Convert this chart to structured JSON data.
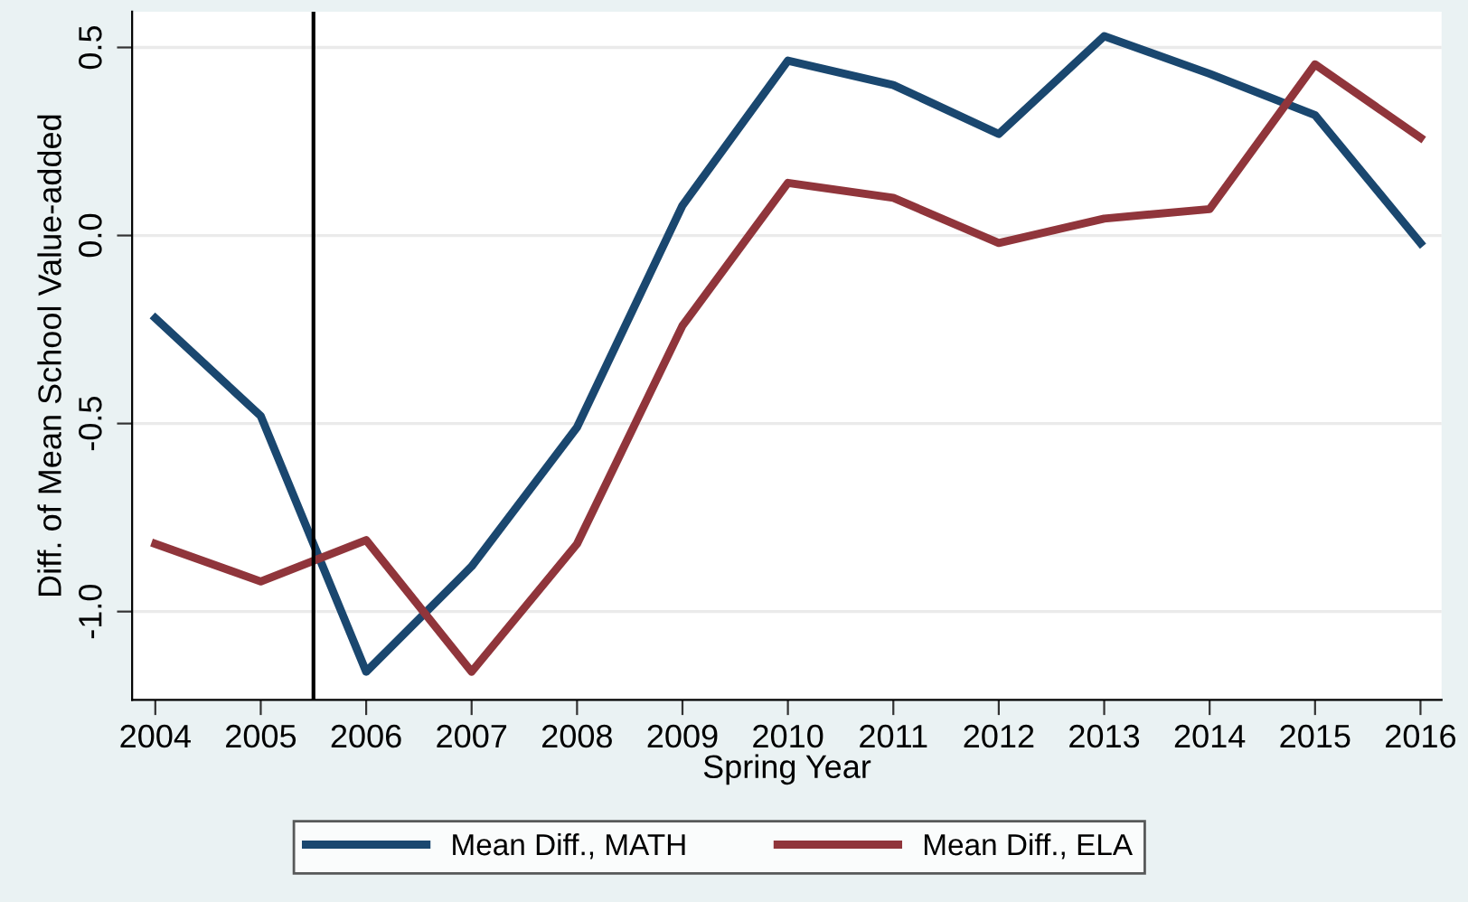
{
  "chart_data": {
    "type": "line",
    "xlabel": "Spring Year",
    "ylabel": "Diff. of Mean School Value-added",
    "x": [
      2004,
      2005,
      2006,
      2007,
      2008,
      2009,
      2010,
      2011,
      2012,
      2013,
      2014,
      2015,
      2016
    ],
    "series": [
      {
        "name": "Mean Diff., MATH",
        "color": "#1a476f",
        "values": [
          -0.22,
          -0.48,
          -1.16,
          -0.88,
          -0.51,
          0.08,
          0.465,
          0.4,
          0.27,
          0.53,
          0.43,
          0.32,
          -0.02
        ]
      },
      {
        "name": "Mean Diff., ELA",
        "color": "#90353b",
        "values": [
          -0.82,
          -0.92,
          -0.81,
          -1.16,
          -0.82,
          -0.24,
          0.14,
          0.1,
          -0.02,
          0.045,
          0.07,
          0.455,
          0.26
        ]
      }
    ],
    "xlim": [
      2003.78,
      2016.2
    ],
    "xticks": [
      2004,
      2005,
      2006,
      2007,
      2008,
      2009,
      2010,
      2011,
      2012,
      2013,
      2014,
      2015,
      2016
    ],
    "ylim": [
      -1.235,
      0.595
    ],
    "yticks": [
      {
        "value": -1.0,
        "label": "-1.0"
      },
      {
        "value": -0.5,
        "label": "-0.5"
      },
      {
        "value": 0.0,
        "label": "0.0"
      },
      {
        "value": 0.5,
        "label": "0.5"
      }
    ],
    "ref_lines": [
      {
        "axis": "x",
        "value": 2005.5,
        "color": "#000000"
      }
    ],
    "grid": "y",
    "legend": "bottom",
    "marker": "none",
    "line_style": "solid"
  }
}
